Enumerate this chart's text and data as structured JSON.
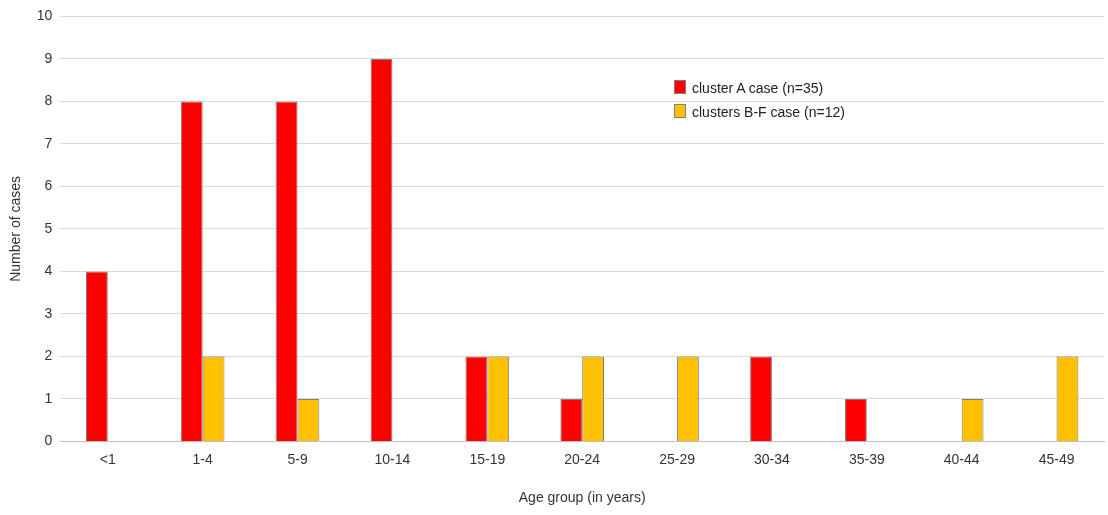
{
  "chart_data": {
    "type": "bar",
    "xlabel": "Age group (in years)",
    "ylabel": "Number of cases",
    "categories": [
      "<1",
      "1-4",
      "5-9",
      "10-14",
      "15-19",
      "20-24",
      "25-29",
      "30-34",
      "35-39",
      "40-44",
      "45-49"
    ],
    "series": [
      {
        "name": "cluster A case (n=35)",
        "color": "#ff0000",
        "values": [
          4,
          8,
          8,
          9,
          2,
          1,
          0,
          2,
          1,
          0,
          0
        ]
      },
      {
        "name": "clusters B-F case (n=12)",
        "color": "#ffc000",
        "values": [
          0,
          2,
          1,
          0,
          2,
          2,
          2,
          0,
          0,
          1,
          2
        ]
      }
    ],
    "ylim": [
      0,
      10
    ],
    "yticks": [
      0,
      1,
      2,
      3,
      4,
      5,
      6,
      7,
      8,
      9,
      10
    ],
    "grid": "y",
    "legend": "top right"
  }
}
